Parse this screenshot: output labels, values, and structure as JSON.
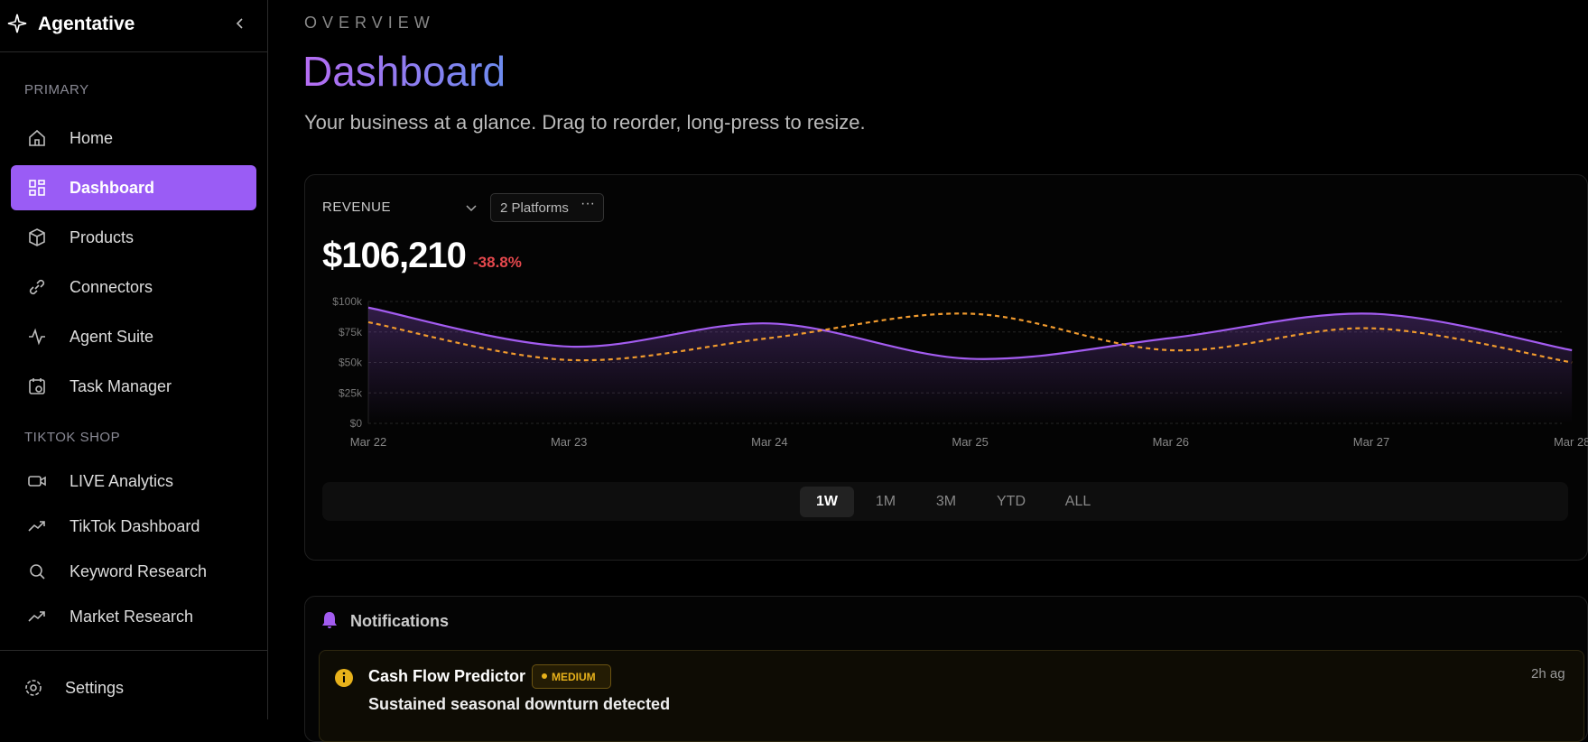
{
  "sidebar": {
    "brand": "Agentative",
    "active": "Dashboard",
    "sections": [
      {
        "title": "PRIMARY",
        "items": [
          "Home",
          "Dashboard",
          "Products",
          "Connectors",
          "Agent Suite",
          "Task Manager"
        ]
      },
      {
        "title": "TIKTOK SHOP",
        "items": [
          "LIVE Analytics",
          "TikTok Dashboard",
          "Keyword Research",
          "Market Research"
        ]
      }
    ],
    "settings": "Settings"
  },
  "header": {
    "eyebrow": "OVERVIEW",
    "title": "Dashboard",
    "subtitle": "Your business at a glance. Drag to reorder, long-press to resize."
  },
  "revenue_card": {
    "label": "REVENUE",
    "platforms": "2 Platforms",
    "total": "$106,210",
    "change": "-38.8%",
    "ranges": [
      "1W",
      "1M",
      "3M",
      "YTD",
      "ALL"
    ],
    "active_range": "1W",
    "chart_data": {
      "type": "line",
      "categories": [
        "Mar 22",
        "Mar 23",
        "Mar 24",
        "Mar 25",
        "Mar 26",
        "Mar 27",
        "Mar 28"
      ],
      "series": [
        {
          "color": "#a35cf0",
          "values": [
            95000,
            63000,
            82000,
            53000,
            70000,
            90000,
            60000
          ],
          "area": true
        },
        {
          "color": "#f09a2e",
          "values": [
            83000,
            52000,
            70000,
            90000,
            60000,
            78000,
            50000
          ],
          "dashed": true
        }
      ],
      "ylim": [
        0,
        100000
      ],
      "yticks": [
        {
          "value": 0,
          "label": "$0"
        },
        {
          "value": 25000,
          "label": "$25k"
        },
        {
          "value": 50000,
          "label": "$50k"
        },
        {
          "value": 75000,
          "label": "$75k"
        },
        {
          "value": 100000,
          "label": "$100k"
        }
      ],
      "grid": true
    }
  },
  "notifications": {
    "title": "Notifications",
    "items": [
      {
        "source": "Cash Flow Predictor",
        "severity": "MEDIUM",
        "message": "Sustained seasonal downturn detected",
        "time": "2h ag"
      }
    ]
  }
}
